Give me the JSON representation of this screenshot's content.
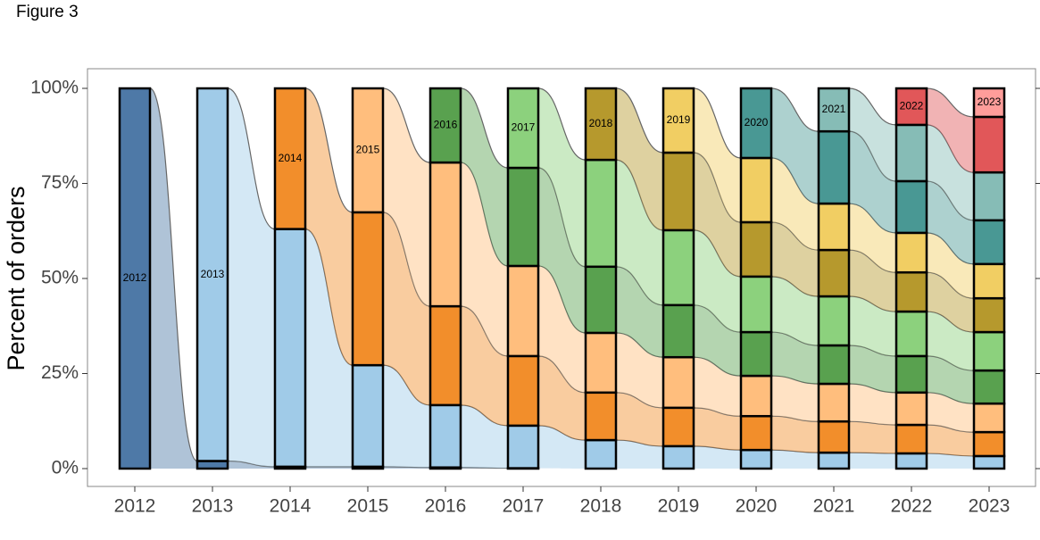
{
  "figure_label": "Figure 3",
  "chart_data": {
    "type": "alluvial",
    "ylabel": "Percent of orders",
    "categories": [
      "2012",
      "2013",
      "2014",
      "2015",
      "2016",
      "2017",
      "2018",
      "2019",
      "2020",
      "2021",
      "2022",
      "2023"
    ],
    "ylim": [
      0,
      100
    ],
    "yticks": [
      {
        "value": 0,
        "label": "0%"
      },
      {
        "value": 25,
        "label": "25%"
      },
      {
        "value": 50,
        "label": "50%"
      },
      {
        "value": 75,
        "label": "75%"
      },
      {
        "value": 100,
        "label": "100%"
      }
    ],
    "series": [
      {
        "name": "2012",
        "color": "#4e79a7",
        "values": [
          100,
          2,
          0.5,
          0.5,
          0.3,
          0.1,
          null,
          null,
          null,
          null,
          null,
          null
        ]
      },
      {
        "name": "2013",
        "color": "#a0cbe8",
        "values": [
          null,
          98,
          62.5,
          26.7,
          16.4,
          11.2,
          7.5,
          5.9,
          4.9,
          4.2,
          4.0,
          3.3
        ]
      },
      {
        "name": "2014",
        "color": "#f28e2b",
        "values": [
          null,
          null,
          37,
          40.2,
          26,
          18.3,
          12.5,
          10.1,
          8.9,
          8.2,
          7.5,
          6.3
        ]
      },
      {
        "name": "2015",
        "color": "#ffbe7d",
        "values": [
          null,
          null,
          null,
          32.6,
          37.8,
          23.7,
          15.7,
          13.3,
          10.6,
          9.9,
          8.5,
          7.5
        ]
      },
      {
        "name": "2016",
        "color": "#59a14f",
        "values": [
          null,
          null,
          null,
          null,
          19.5,
          25.8,
          17.4,
          13.7,
          11.5,
          10.1,
          9.6,
          8.7
        ]
      },
      {
        "name": "2017",
        "color": "#8cd17d",
        "values": [
          null,
          null,
          null,
          null,
          null,
          20.9,
          28.1,
          19.7,
          14.6,
          12.9,
          11.7,
          10.1
        ]
      },
      {
        "name": "2018",
        "color": "#b6992d",
        "values": [
          null,
          null,
          null,
          null,
          null,
          null,
          18.8,
          20.4,
          14.3,
          12.2,
          10.3,
          8.9
        ]
      },
      {
        "name": "2019",
        "color": "#f1ce63",
        "values": [
          null,
          null,
          null,
          null,
          null,
          null,
          null,
          16.9,
          16.9,
          12.2,
          10.4,
          9.0
        ]
      },
      {
        "name": "2020",
        "color": "#499894",
        "values": [
          null,
          null,
          null,
          null,
          null,
          null,
          null,
          null,
          18.3,
          19.0,
          13.6,
          11.5
        ]
      },
      {
        "name": "2021",
        "color": "#86bcb6",
        "values": [
          null,
          null,
          null,
          null,
          null,
          null,
          null,
          null,
          null,
          11.3,
          14.8,
          12.6
        ]
      },
      {
        "name": "2022",
        "color": "#e15759",
        "values": [
          null,
          null,
          null,
          null,
          null,
          null,
          null,
          null,
          null,
          null,
          9.6,
          14.6
        ]
      },
      {
        "name": "2023",
        "color": "#ff9d9a",
        "values": [
          null,
          null,
          null,
          null,
          null,
          null,
          null,
          null,
          null,
          null,
          null,
          7.5
        ]
      }
    ]
  }
}
